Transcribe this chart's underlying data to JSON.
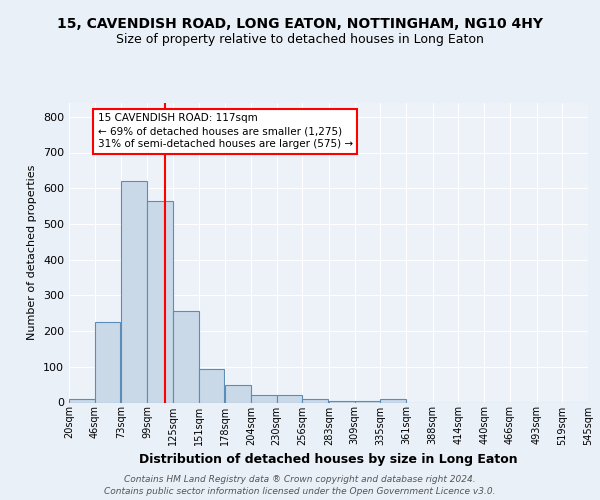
{
  "title1": "15, CAVENDISH ROAD, LONG EATON, NOTTINGHAM, NG10 4HY",
  "title2": "Size of property relative to detached houses in Long Eaton",
  "xlabel": "Distribution of detached houses by size in Long Eaton",
  "ylabel": "Number of detached properties",
  "bin_labels": [
    "20sqm",
    "46sqm",
    "73sqm",
    "99sqm",
    "125sqm",
    "151sqm",
    "178sqm",
    "204sqm",
    "230sqm",
    "256sqm",
    "283sqm",
    "309sqm",
    "335sqm",
    "361sqm",
    "388sqm",
    "414sqm",
    "440sqm",
    "466sqm",
    "493sqm",
    "519sqm",
    "545sqm"
  ],
  "bin_edges": [
    20,
    46,
    73,
    99,
    125,
    151,
    178,
    204,
    230,
    256,
    283,
    309,
    335,
    361,
    388,
    414,
    440,
    466,
    493,
    519,
    545
  ],
  "bar_values": [
    10,
    225,
    620,
    565,
    255,
    95,
    48,
    22,
    22,
    10,
    5,
    5,
    10,
    0,
    0,
    0,
    0,
    0,
    0,
    0
  ],
  "bar_color": "#c9d9e8",
  "bar_edge_color": "#5b8db8",
  "red_line_x": 117,
  "annotation_box_text": "15 CAVENDISH ROAD: 117sqm\n← 69% of detached houses are smaller (1,275)\n31% of semi-detached houses are larger (575) →",
  "ylim": [
    0,
    840
  ],
  "yticks": [
    0,
    100,
    200,
    300,
    400,
    500,
    600,
    700,
    800
  ],
  "footer_line1": "Contains HM Land Registry data ® Crown copyright and database right 2024.",
  "footer_line2": "Contains public sector information licensed under the Open Government Licence v3.0.",
  "bg_color": "#eaf0f8",
  "plot_bg_color": "#edf2f9"
}
